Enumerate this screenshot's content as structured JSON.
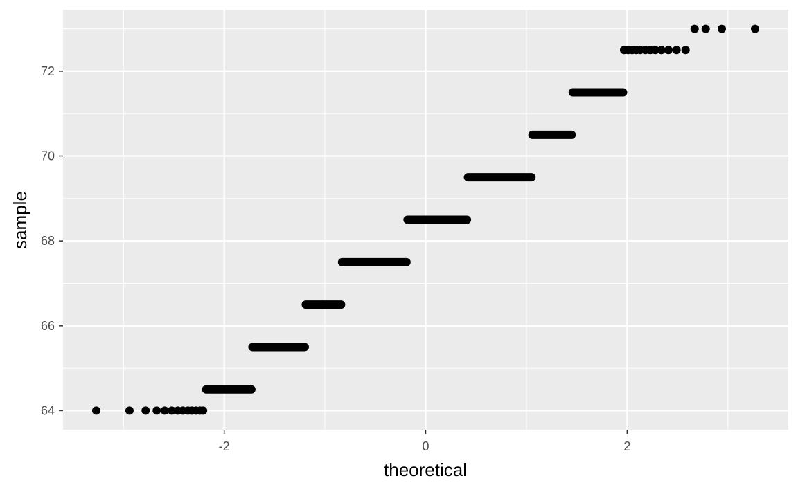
{
  "chart_data": {
    "type": "scatter",
    "title": "",
    "xlabel": "theoretical",
    "ylabel": "sample",
    "xlim": [
      -3.6,
      3.6
    ],
    "ylim": [
      63.55,
      73.45
    ],
    "x_ticks": [
      -2,
      0,
      2
    ],
    "y_ticks": [
      64,
      66,
      68,
      70,
      72
    ],
    "grid": true,
    "point_color": "#000000",
    "panel_background": "#ebebeb",
    "grid_color": "#ffffff",
    "groups": [
      {
        "y": 64.0,
        "x_from": -2.21,
        "x_to": -2.21,
        "points": [
          -3.27,
          -2.94,
          -2.78,
          -2.67,
          -2.59,
          -2.52,
          -2.46,
          -2.41,
          -2.36,
          -2.32,
          -2.28,
          -2.24,
          -2.21
        ]
      },
      {
        "y": 64.5,
        "x_from": -2.18,
        "x_to": -1.73
      },
      {
        "y": 65.5,
        "x_from": -1.72,
        "x_to": -1.2
      },
      {
        "y": 66.5,
        "x_from": -1.19,
        "x_to": -0.84
      },
      {
        "y": 67.5,
        "x_from": -0.83,
        "x_to": -0.19
      },
      {
        "y": 68.5,
        "x_from": -0.18,
        "x_to": 0.41
      },
      {
        "y": 69.5,
        "x_from": 0.42,
        "x_to": 1.05
      },
      {
        "y": 70.5,
        "x_from": 1.06,
        "x_to": 1.45
      },
      {
        "y": 71.5,
        "x_from": 1.46,
        "x_to": 1.96
      },
      {
        "y": 72.5,
        "x_from": 1.97,
        "x_to": 1.97,
        "points": [
          1.97,
          2.01,
          2.05,
          2.09,
          2.13,
          2.18,
          2.23,
          2.28,
          2.34,
          2.41,
          2.49,
          2.58
        ]
      },
      {
        "y": 73.0,
        "x_from": 2.67,
        "x_to": 2.67,
        "points": [
          2.67,
          2.78,
          2.94,
          3.27
        ]
      }
    ]
  }
}
